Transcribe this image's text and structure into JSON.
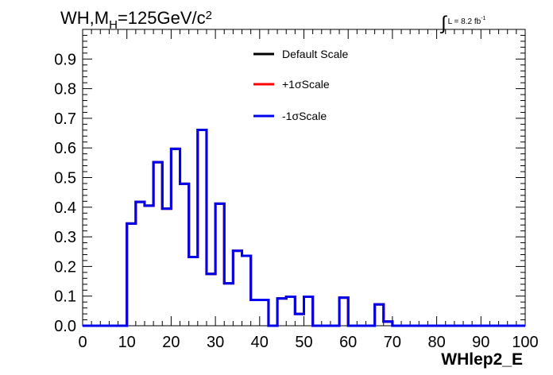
{
  "title": {
    "prefix": "WH,M",
    "subscript": "H",
    "main": "=125GeV/c",
    "superscript": "2"
  },
  "lumi": {
    "integral_symbol": "∫",
    "text": "L = 8.2 fb",
    "superscript": "-1"
  },
  "colors": {
    "default": "#000000",
    "plus": "#ff0000",
    "minus": "#0000ee"
  },
  "chart_data": {
    "type": "line",
    "style": "step-histogram",
    "xlabel": "WHlep2_E",
    "ylabel": "",
    "xlim": [
      0,
      100
    ],
    "ylim": [
      0,
      1.0
    ],
    "xticks": [
      0,
      10,
      20,
      30,
      40,
      50,
      60,
      70,
      80,
      90,
      100
    ],
    "yticks": [
      0.0,
      0.1,
      0.2,
      0.3,
      0.4,
      0.5,
      0.6,
      0.7,
      0.8,
      0.9
    ],
    "ytick_labels": [
      "0.0",
      "0.1",
      "0.2",
      "0.3",
      "0.4",
      "0.5",
      "0.6",
      "0.7",
      "0.8",
      "0.9"
    ],
    "bin_edges": [
      0,
      2,
      4,
      6,
      8,
      10,
      12,
      14,
      16,
      18,
      20,
      22,
      24,
      26,
      28,
      30,
      32,
      34,
      36,
      38,
      40,
      42,
      44,
      46,
      48,
      50,
      52,
      54,
      56,
      58,
      60,
      62,
      64,
      66,
      68,
      70,
      72,
      74,
      76,
      78,
      80,
      82,
      84,
      86,
      88,
      90,
      92,
      94,
      96,
      98,
      100
    ],
    "legend": {
      "position": "top-center",
      "entries": [
        {
          "label": "Default Scale",
          "color": "#000000"
        },
        {
          "label": "+1σScale",
          "color": "#ff0000"
        },
        {
          "label": "-1σScale",
          "color": "#0000ee"
        }
      ]
    },
    "series": [
      {
        "name": "Default Scale",
        "color": "#000000",
        "values": [
          0,
          0,
          0,
          0,
          0,
          0.345,
          0.418,
          0.405,
          0.552,
          0.395,
          0.597,
          0.479,
          0.232,
          0.661,
          0.175,
          0.412,
          0.143,
          0.253,
          0.236,
          0.087,
          0.087,
          0,
          0.092,
          0.098,
          0.04,
          0.098,
          0,
          0,
          0,
          0.095,
          0,
          0,
          0,
          0.072,
          0.014,
          0,
          0,
          0,
          0,
          0,
          0,
          0,
          0,
          0,
          0,
          0,
          0,
          0,
          0,
          0
        ]
      },
      {
        "name": "+1σScale",
        "color": "#ff0000",
        "values": [
          0,
          0,
          0,
          0,
          0,
          0.345,
          0.418,
          0.405,
          0.552,
          0.395,
          0.597,
          0.479,
          0.232,
          0.661,
          0.175,
          0.412,
          0.143,
          0.253,
          0.236,
          0.087,
          0.087,
          0,
          0.092,
          0.098,
          0.04,
          0.098,
          0,
          0,
          0,
          0.095,
          0,
          0,
          0,
          0.072,
          0.014,
          0,
          0,
          0,
          0,
          0,
          0,
          0,
          0,
          0,
          0,
          0,
          0,
          0,
          0,
          0
        ]
      },
      {
        "name": "-1σScale",
        "color": "#0000ee",
        "values": [
          0,
          0,
          0,
          0,
          0,
          0.345,
          0.418,
          0.405,
          0.552,
          0.395,
          0.597,
          0.479,
          0.232,
          0.661,
          0.175,
          0.412,
          0.143,
          0.253,
          0.236,
          0.087,
          0.087,
          0,
          0.092,
          0.098,
          0.04,
          0.098,
          0,
          0,
          0,
          0.095,
          0,
          0,
          0,
          0.072,
          0.014,
          0,
          0,
          0,
          0,
          0,
          0,
          0,
          0,
          0,
          0,
          0,
          0,
          0,
          0,
          0
        ]
      }
    ]
  }
}
